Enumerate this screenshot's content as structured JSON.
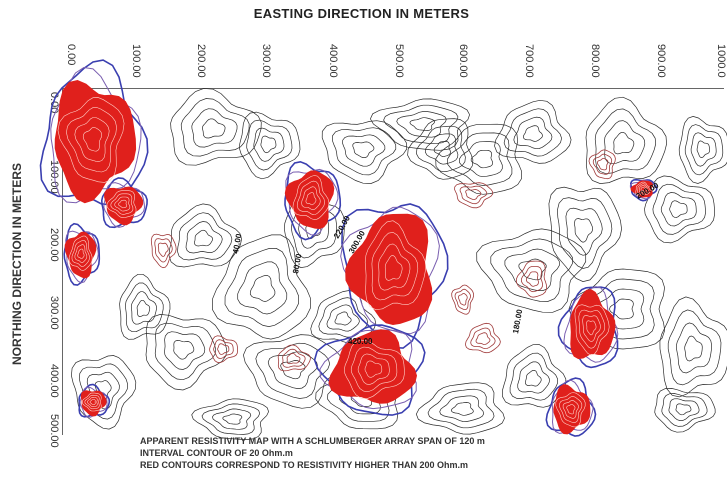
{
  "map": {
    "x_axis_title": "EASTING DIRECTION IN METERS",
    "y_axis_title": "NORTHING DIRECTION IN METERS",
    "x_ticks": [
      "0.00",
      "100.00",
      "200.00",
      "300.00",
      "400.00",
      "500.00",
      "600.00",
      "700.00",
      "800.00",
      "900.00",
      "1000.0"
    ],
    "y_ticks": [
      "0.00",
      "100.00",
      "200.00",
      "300.00",
      "400.00",
      "500.00"
    ],
    "contour_labels": [
      "40.00",
      "80.00",
      "300.00",
      "420.00",
      "200.00",
      "180.00",
      "220.00"
    ],
    "captions": {
      "line1": "APPARENT RESISTIVITY MAP WITH A SCHLUMBERGER ARRAY SPAN OF 120 m",
      "line2": "INTERVAL CONTOUR OF 20 Ohm.m",
      "line3": "RED CONTOURS CORRESPOND TO RESISTIVITY HIGHER THAN 200 Ohm.m"
    },
    "colors": {
      "low_contour": "#2b2b2b",
      "mid_contour": "#a03a3a",
      "high_fill": "#e0201c",
      "edge_contour": "#3a3fb0"
    }
  }
}
